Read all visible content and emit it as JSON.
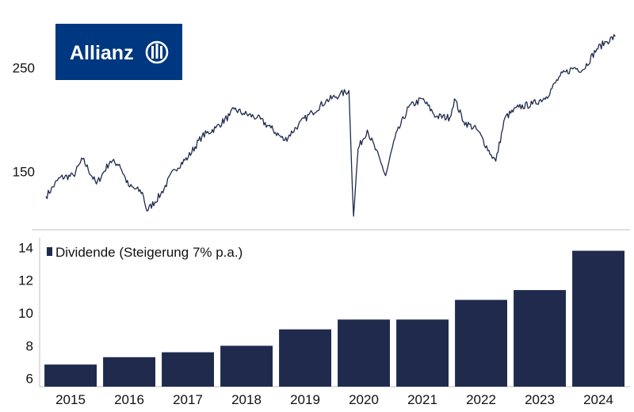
{
  "brand": {
    "logo_text": "Allianz",
    "logo_icon": "allianz-eagle-icon",
    "color": "#003781"
  },
  "chart_data": [
    {
      "type": "line",
      "title": "",
      "xlabel": "",
      "ylabel": "",
      "color": "#1f2a4d",
      "ylim": [
        100,
        300
      ],
      "yticks": [
        150,
        250
      ],
      "xlim": [
        "2014-08",
        "2025-01"
      ],
      "x": [
        "2014-08",
        "2014-11",
        "2015-02",
        "2015-04",
        "2015-07",
        "2015-10",
        "2015-12",
        "2016-02",
        "2016-05",
        "2016-06",
        "2016-09",
        "2016-12",
        "2017-03",
        "2017-06",
        "2017-09",
        "2017-12",
        "2018-01",
        "2018-03",
        "2018-06",
        "2018-09",
        "2018-12",
        "2019-03",
        "2019-06",
        "2019-09",
        "2019-12",
        "2020-02",
        "2020-03",
        "2020-04",
        "2020-06",
        "2020-09",
        "2020-10",
        "2020-12",
        "2021-03",
        "2021-06",
        "2021-09",
        "2021-12",
        "2022-01",
        "2022-03",
        "2022-06",
        "2022-09",
        "2022-10",
        "2022-12",
        "2023-03",
        "2023-06",
        "2023-09",
        "2023-12",
        "2024-03",
        "2024-05",
        "2024-08",
        "2024-10",
        "2024-12"
      ],
      "y": [
        126,
        144,
        146,
        162,
        138,
        160,
        157,
        136,
        130,
        112,
        128,
        152,
        164,
        184,
        192,
        204,
        210,
        206,
        202,
        192,
        180,
        195,
        207,
        218,
        224,
        228,
        107,
        172,
        190,
        158,
        146,
        182,
        212,
        220,
        203,
        202,
        220,
        198,
        190,
        166,
        160,
        202,
        212,
        215,
        222,
        242,
        250,
        248,
        268,
        275,
        280
      ]
    },
    {
      "type": "bar",
      "title": "",
      "xlabel": "",
      "ylabel": "",
      "legend": {
        "label": "Dividende (Steigerung 7% p.a.)",
        "position": "top-left"
      },
      "color": "#1f2a4d",
      "categories": [
        "2015",
        "2016",
        "2017",
        "2018",
        "2019",
        "2020",
        "2021",
        "2022",
        "2023",
        "2024"
      ],
      "values": [
        6.85,
        7.3,
        7.6,
        8.0,
        9.0,
        9.6,
        9.6,
        10.8,
        11.4,
        13.8
      ],
      "ylim": [
        5.5,
        14.6
      ],
      "yticks": [
        6,
        8,
        10,
        12,
        14
      ]
    }
  ]
}
